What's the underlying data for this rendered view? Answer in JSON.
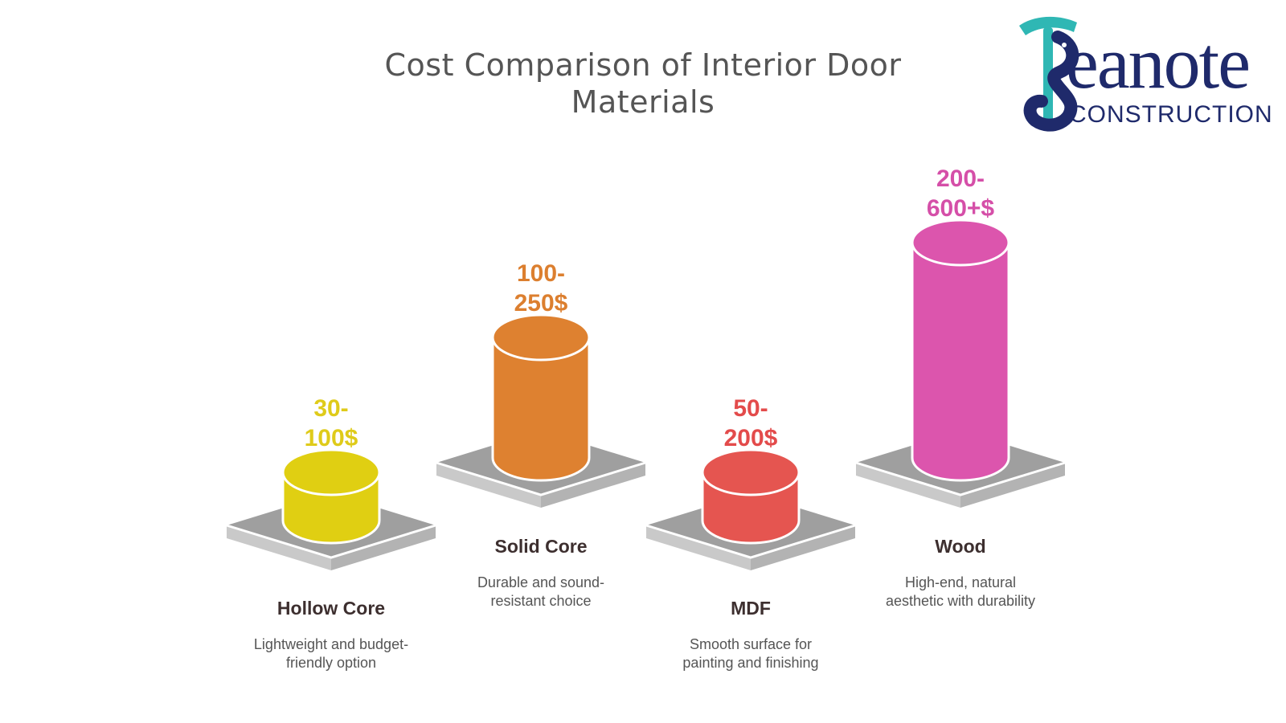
{
  "chart_data": {
    "type": "bar",
    "title": "Cost Comparison of Interior Door Materials",
    "categories": [
      "Hollow Core",
      "Solid Core",
      "MDF",
      "Wood"
    ],
    "value_labels": [
      "30-\n100$",
      "100-\n250$",
      "50-\n200$",
      "200-\n600+$"
    ],
    "series": [
      {
        "values": [
          30,
          100,
          50,
          200
        ]
      },
      {
        "values": [
          100,
          250,
          200,
          600
        ]
      }
    ],
    "descriptions": [
      "Lightweight and budget-\nfriendly option",
      "Durable and sound-\nresistant choice",
      "Smooth surface for\npainting and finishing",
      "High-end, natural\naesthetic with durability"
    ],
    "colors": [
      "#e0cf12",
      "#de8130",
      "#e55550",
      "#dc55ad"
    ],
    "label_colors": [
      "#dfcb1a",
      "#dc7f2f",
      "#e34b4b",
      "#d54fa8"
    ],
    "levels": [
      1,
      2,
      1,
      3
    ]
  },
  "logo": {
    "word": "eanote",
    "sub": "CONSTRUCTION",
    "colors": {
      "navy": "#1f2a6b",
      "teal": "#2fb7b4"
    }
  }
}
